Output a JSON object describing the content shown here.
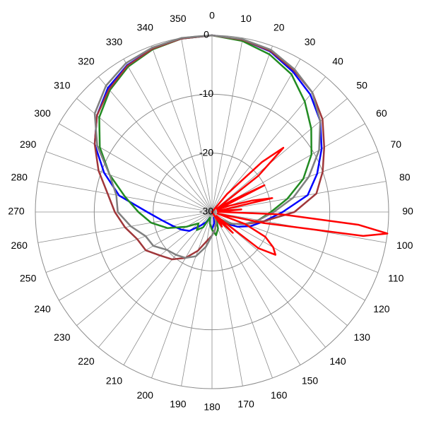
{
  "chart_data": {
    "type": "polar",
    "rlim": [
      -30,
      0
    ],
    "rticks": [
      -30,
      -20,
      -10,
      0
    ],
    "thetaticks": [
      0,
      10,
      20,
      30,
      40,
      50,
      60,
      70,
      80,
      90,
      100,
      110,
      120,
      130,
      140,
      150,
      160,
      170,
      180,
      190,
      200,
      210,
      220,
      230,
      240,
      250,
      260,
      270,
      280,
      290,
      300,
      310,
      320,
      330,
      340,
      350
    ],
    "grid": true,
    "series": [
      {
        "color": "#0000ff",
        "theta": [
          0,
          10,
          20,
          30,
          40,
          50,
          60,
          70,
          80,
          90,
          100,
          110,
          120,
          130,
          140,
          150,
          160,
          170,
          180,
          190,
          200,
          210,
          220,
          230,
          240,
          250,
          260,
          270,
          280,
          290,
          300,
          310,
          320,
          330,
          340,
          350
        ],
        "values": [
          0,
          -0.3,
          -1,
          -2.5,
          -4,
          -6,
          -8.5,
          -11,
          -13.5,
          -18,
          -21,
          -23,
          -25,
          -27,
          -28,
          -29,
          -29,
          -28,
          -27,
          -28,
          -29,
          -28,
          -27,
          -25,
          -24,
          -23,
          -21.5,
          -19,
          -14,
          -10.5,
          -7,
          -4.5,
          -2.5,
          -1.2,
          -0.5,
          -0.1
        ]
      },
      {
        "color": "#228b22",
        "theta": [
          0,
          10,
          20,
          30,
          40,
          50,
          60,
          70,
          80,
          90,
          100,
          110,
          120,
          130,
          140,
          150,
          160,
          170,
          180,
          190,
          200,
          210,
          220,
          230,
          240,
          250,
          260,
          270,
          280,
          290,
          300,
          310,
          320,
          330,
          340,
          350
        ],
        "values": [
          0,
          -0.5,
          -1.5,
          -3,
          -5.5,
          -8,
          -10.5,
          -13.5,
          -17,
          -20,
          -22,
          -24,
          -26,
          -27,
          -28,
          -28.5,
          -27,
          -26,
          -27,
          -28,
          -29,
          -27,
          -26,
          -27,
          -25,
          -22,
          -19.5,
          -17.5,
          -15,
          -11.5,
          -8,
          -5,
          -3,
          -1.5,
          -0.6,
          -0.1
        ]
      },
      {
        "color": "#a0373a",
        "theta": [
          0,
          10,
          20,
          30,
          40,
          50,
          60,
          70,
          80,
          90,
          100,
          110,
          120,
          130,
          140,
          150,
          160,
          170,
          180,
          190,
          200,
          210,
          220,
          230,
          240,
          250,
          260,
          270,
          280,
          290,
          300,
          310,
          320,
          330,
          340,
          350
        ],
        "values": [
          0,
          -0.3,
          -0.9,
          -2.2,
          -3.5,
          -5.5,
          -8,
          -10,
          -12,
          -16,
          -21,
          -24,
          -26,
          -27.5,
          -28.5,
          -29,
          -28,
          -27,
          -26,
          -25,
          -23,
          -21,
          -19.5,
          -18.5,
          -17,
          -16.5,
          -15,
          -13.5,
          -12,
          -9.5,
          -7,
          -4.5,
          -2.8,
          -1.3,
          -0.5,
          -0.1
        ]
      },
      {
        "color": "#808080",
        "theta": [
          0,
          10,
          20,
          30,
          40,
          50,
          60,
          70,
          80,
          90,
          100,
          110,
          120,
          130,
          140,
          150,
          160,
          170,
          180,
          190,
          200,
          210,
          220,
          230,
          240,
          250,
          260,
          270,
          280,
          290,
          300,
          310,
          320,
          330,
          340,
          350
        ],
        "values": [
          0,
          -0.2,
          -0.7,
          -2,
          -3.5,
          -6,
          -9,
          -12.5,
          -16,
          -19.5,
          -22,
          -24,
          -26,
          -28,
          -29,
          -29,
          -28,
          -27,
          -26,
          -24,
          -22,
          -21,
          -20.5,
          -20,
          -18.5,
          -18,
          -16,
          -14,
          -13.5,
          -11.5,
          -7.5,
          -4,
          -2,
          -0.8,
          -0.3,
          0
        ]
      },
      {
        "color": "#ff0000",
        "theta": [
          0,
          30,
          40,
          45,
          48,
          52,
          56,
          60,
          63,
          66,
          70,
          74,
          77,
          80,
          85,
          88,
          92,
          95,
          97,
          99,
          102,
          106,
          110,
          115,
          120,
          124,
          128,
          132,
          135,
          140,
          146,
          150,
          160,
          180,
          270,
          330
        ],
        "values": [
          -30,
          -30,
          -26,
          -18,
          -13.7,
          -20,
          -29,
          -26,
          -20,
          -29,
          -27,
          -23,
          -19.5,
          -29,
          -25,
          -29,
          -18,
          -5,
          0,
          -4,
          -21,
          -29,
          -24,
          -20,
          -18,
          -17,
          -20,
          -29,
          -25,
          -28,
          -27,
          -30,
          -30,
          -30,
          -30,
          -30
        ]
      }
    ]
  }
}
